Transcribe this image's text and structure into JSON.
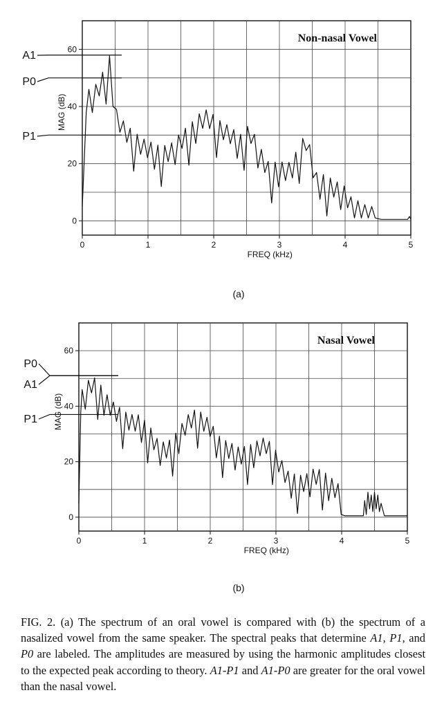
{
  "chart_data": [
    {
      "type": "line",
      "panel_label": "(a)",
      "title": "Non-nasal  Vowel",
      "xlabel": "FREQ (kHz)",
      "ylabel": "MAG (dB)",
      "xlim": [
        0,
        5
      ],
      "ylim": [
        -5,
        70
      ],
      "xticks": [
        "0",
        "1",
        "2",
        "3",
        "4",
        "5"
      ],
      "yticks": [
        "0",
        "20",
        "40",
        "60"
      ],
      "grid": true,
      "harmonic_spacing_khz": 0.105,
      "envelope": {
        "x": [
          0.1,
          0.22,
          0.31,
          0.42,
          0.52,
          0.65,
          0.8,
          0.9,
          1.0,
          1.1,
          1.2,
          1.35,
          1.5,
          1.65,
          1.8,
          1.9,
          2.0,
          2.1,
          2.25,
          2.4,
          2.55,
          2.7,
          2.85,
          3.0,
          3.1,
          3.2,
          3.3,
          3.42,
          3.55,
          3.7,
          3.85,
          4.0,
          4.1,
          4.2,
          4.35,
          4.5
        ],
        "y": [
          46,
          48,
          52,
          58,
          39,
          34,
          31,
          29,
          28,
          27,
          26,
          27,
          31,
          34,
          38,
          39,
          37,
          35,
          33,
          30,
          34,
          26,
          20,
          21,
          20,
          21,
          27,
          31,
          17,
          16,
          14,
          12,
          8,
          7,
          5,
          5
        ]
      },
      "annotations": [
        {
          "label": "A1",
          "value_db": 58
        },
        {
          "label": "P0",
          "value_db": 50
        },
        {
          "label": "P1",
          "value_db": 30
        }
      ]
    },
    {
      "type": "line",
      "panel_label": "(b)",
      "title": "Nasal  Vowel",
      "xlabel": "FREQ (kHz)",
      "ylabel": "MAG (dB)",
      "xlim": [
        0,
        5
      ],
      "ylim": [
        -5,
        70
      ],
      "xticks": [
        "0",
        "1",
        "2",
        "3",
        "4",
        "5"
      ],
      "yticks": [
        "0",
        "20",
        "40",
        "60"
      ],
      "grid": true,
      "harmonic_spacing_khz": 0.095,
      "envelope": {
        "x": [
          0.05,
          0.1,
          0.2,
          0.3,
          0.4,
          0.5,
          0.6,
          0.7,
          0.8,
          0.9,
          1.0,
          1.1,
          1.2,
          1.3,
          1.4,
          1.5,
          1.6,
          1.7,
          1.8,
          1.9,
          2.0,
          2.1,
          2.2,
          2.3,
          2.45,
          2.6,
          2.75,
          2.85,
          3.0,
          3.2,
          3.4,
          3.5,
          3.6,
          3.75,
          3.85,
          3.95,
          4.0
        ],
        "y": [
          46,
          48,
          51,
          49,
          45,
          42,
          40,
          38,
          37,
          37,
          35,
          32,
          28,
          27,
          28,
          31,
          35,
          38,
          39,
          37,
          35,
          30,
          28,
          27,
          25,
          26,
          28,
          29,
          24,
          16,
          15,
          16,
          18,
          16,
          14,
          12,
          6
        ]
      },
      "island": {
        "x": [
          4.35,
          4.4,
          4.45,
          4.5,
          4.55,
          4.6
        ],
        "y": [
          6,
          9,
          8,
          9,
          8,
          5
        ]
      },
      "annotations": [
        {
          "label": "P0",
          "value_db": 51
        },
        {
          "label": "A1",
          "value_db": 51
        },
        {
          "label": "P1",
          "value_db": 37
        }
      ]
    }
  ],
  "caption": {
    "intro": "FIG. 2. (a) The spectrum of an oral vowel is compared with (b) the spectrum of a nasalized vowel from the same speaker. The spectral peaks that determine ",
    "v1": "A1",
    "t1": ", ",
    "v2": "P1",
    "t2": ", and ",
    "v3": "P0",
    "t3": " are labeled. The amplitudes are measured by using the harmonic amplitudes closest to the expected peak according to theory. ",
    "v4": "A1-P1",
    "t4": " and ",
    "v5": "A1-P0",
    "t5": " are greater for the oral vowel than the nasal vowel."
  },
  "colors": {
    "ink": "#111111",
    "grid": "#444444",
    "background": "#ffffff"
  }
}
